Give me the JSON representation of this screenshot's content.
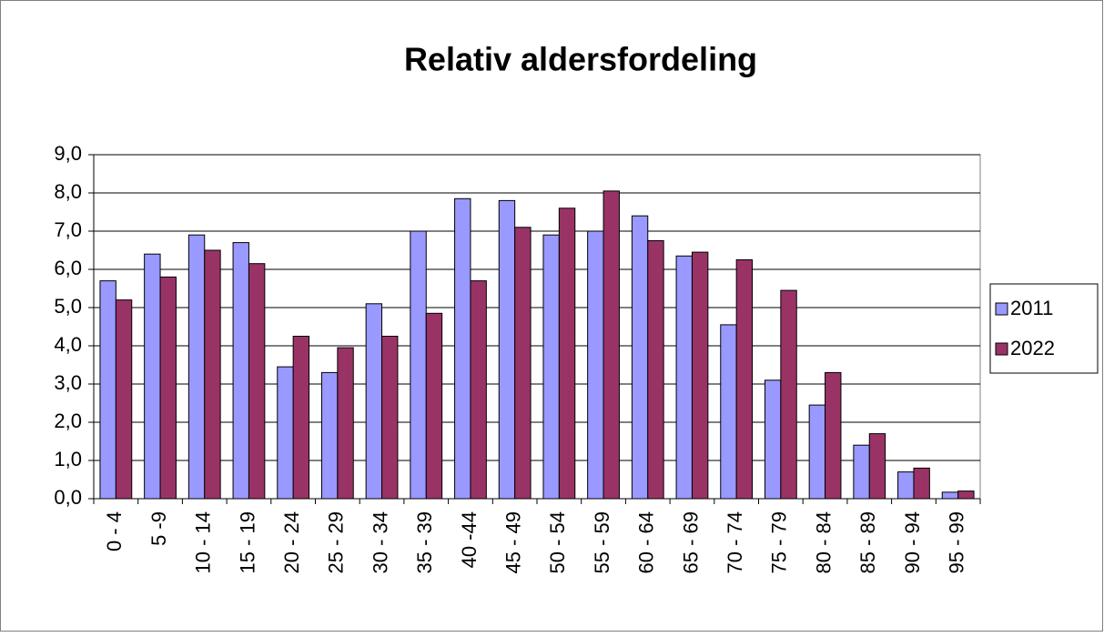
{
  "chart_data": {
    "type": "bar",
    "title": "Relativ aldersfordeling",
    "categories": [
      "0 - 4",
      "5 -9",
      "10 - 14",
      "15 - 19",
      "20 - 24",
      "25 - 29",
      "30 - 34",
      "35 - 39",
      "40 -44",
      "45 - 49",
      "50 - 54",
      "55 - 59",
      "60 - 64",
      "65 - 69",
      "70 - 74",
      "75 - 79",
      "80 - 84",
      "85 - 89",
      "90 - 94",
      "95 - 99"
    ],
    "series": [
      {
        "name": "2011",
        "color": "#9999ff",
        "values": [
          5.7,
          6.4,
          6.9,
          6.7,
          3.45,
          3.3,
          5.1,
          7.0,
          7.85,
          7.8,
          6.9,
          7.0,
          7.4,
          6.35,
          4.55,
          3.1,
          2.45,
          1.4,
          0.7,
          0.17
        ]
      },
      {
        "name": "2022",
        "color": "#993366",
        "values": [
          5.2,
          5.8,
          6.5,
          6.15,
          4.25,
          3.95,
          4.25,
          4.85,
          5.7,
          7.1,
          7.6,
          8.05,
          6.75,
          6.45,
          6.25,
          5.45,
          3.3,
          1.7,
          0.8,
          0.2
        ]
      }
    ],
    "ylim": [
      0,
      9
    ],
    "yticks": [
      {
        "value": 0,
        "label": "0,0"
      },
      {
        "value": 1,
        "label": "1,0"
      },
      {
        "value": 2,
        "label": "2,0"
      },
      {
        "value": 3,
        "label": "3,0"
      },
      {
        "value": 4,
        "label": "4,0"
      },
      {
        "value": 5,
        "label": "5,0"
      },
      {
        "value": 6,
        "label": "6,0"
      },
      {
        "value": 7,
        "label": "7,0"
      },
      {
        "value": 8,
        "label": "8,0"
      },
      {
        "value": 9,
        "label": "9,0"
      }
    ],
    "grid": true,
    "legend": "right"
  }
}
